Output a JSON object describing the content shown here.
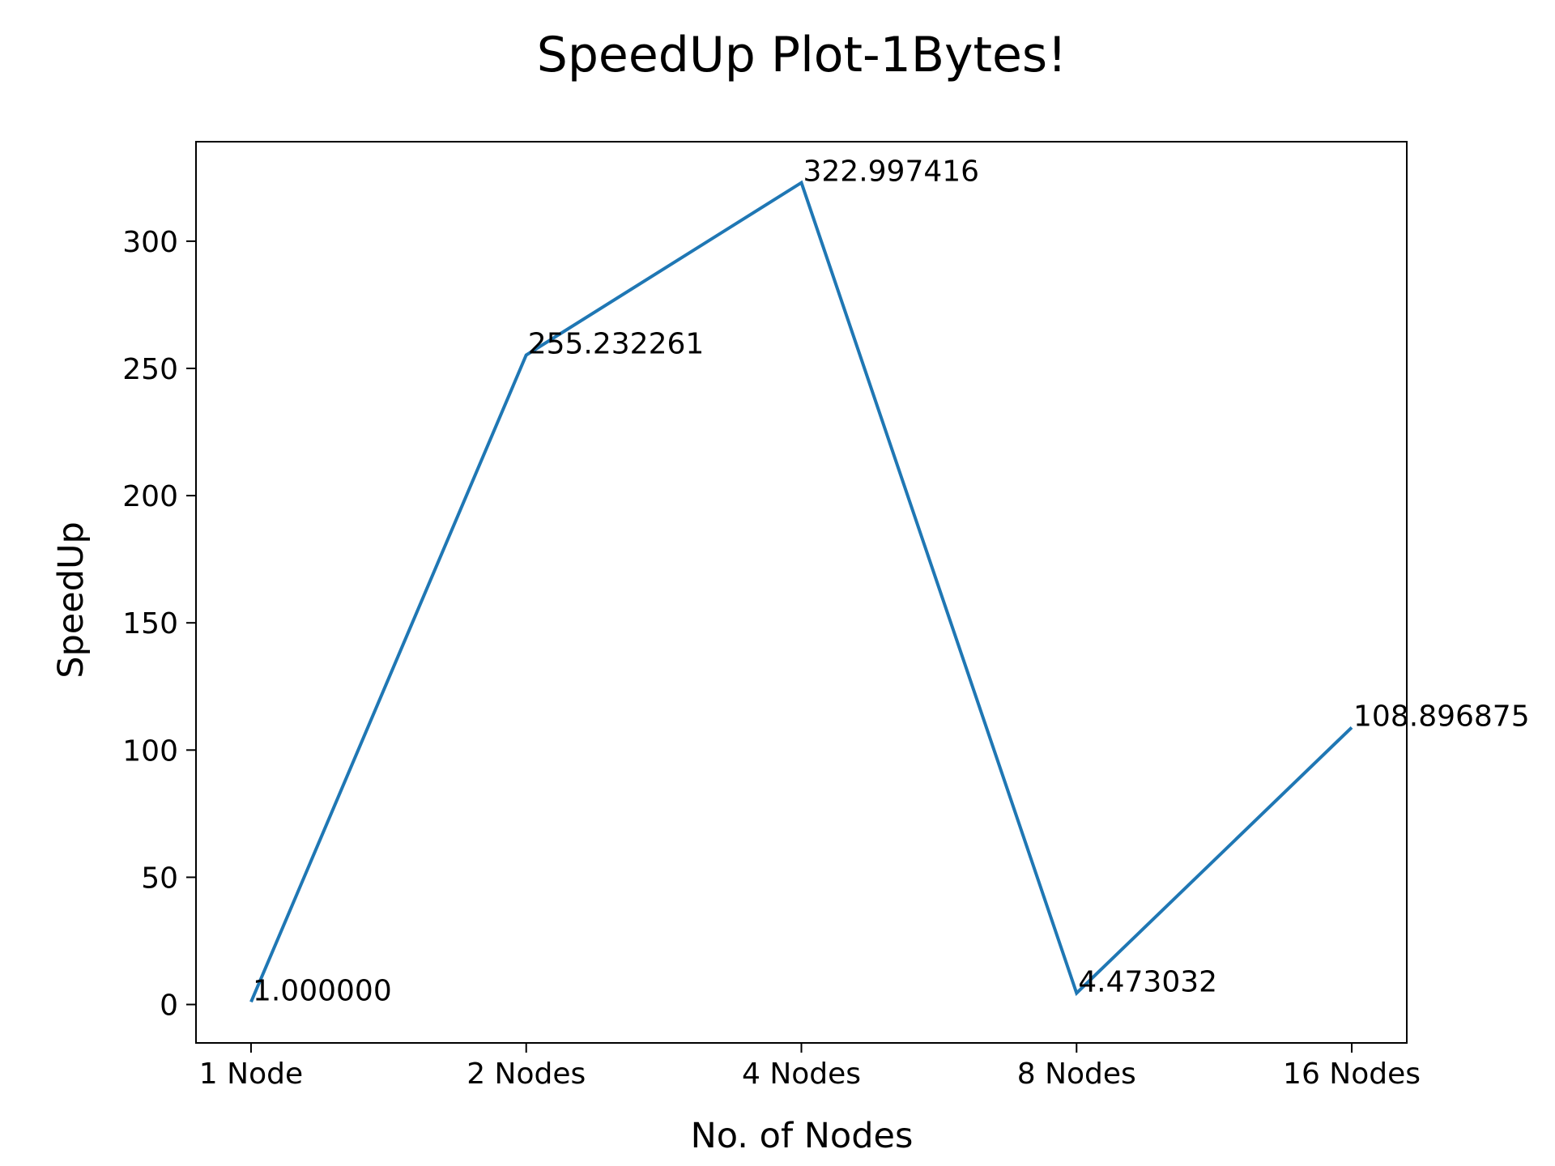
{
  "chart_data": {
    "type": "line",
    "title": "SpeedUp Plot-1Bytes!",
    "xlabel": "No. of Nodes",
    "ylabel": "SpeedUp",
    "categories": [
      "1 Node",
      "2 Nodes",
      "4 Nodes",
      "8 Nodes",
      "16 Nodes"
    ],
    "values": [
      1.0,
      255.232261,
      322.997416,
      4.473032,
      108.896875
    ],
    "data_labels": [
      "1.000000",
      "255.232261",
      "322.997416",
      "4.473032",
      "108.896875"
    ],
    "ylim": [
      -15.1,
      339.1
    ],
    "yticks": [
      0,
      50,
      100,
      150,
      200,
      250,
      300
    ],
    "grid": false,
    "line_color": "#1f77b4"
  }
}
